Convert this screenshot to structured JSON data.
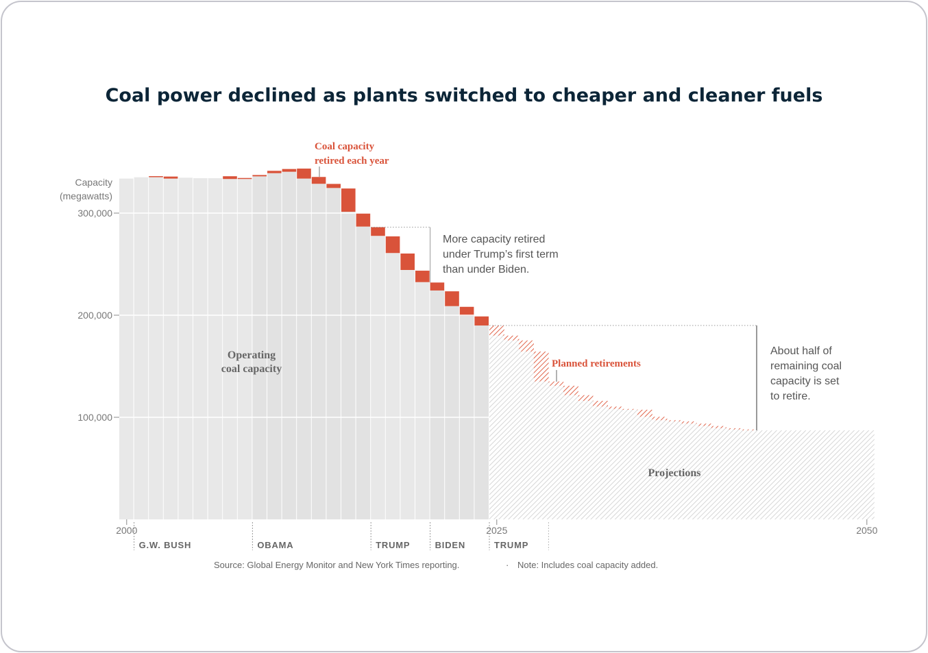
{
  "chart_data": {
    "type": "bar",
    "title": "Coal power declined as plants switched to cheaper and cleaner fuels",
    "ylabel": [
      "Capacity",
      "(megawatts)"
    ],
    "yticks": [
      {
        "value": 100000,
        "label": "100,000"
      },
      {
        "value": 200000,
        "label": "200,000"
      },
      {
        "value": 300000,
        "label": "300,000"
      }
    ],
    "xticks": [
      {
        "value": 2000,
        "label": "2000"
      },
      {
        "value": 2025,
        "label": "2025"
      },
      {
        "value": 2050,
        "label": "2050"
      }
    ],
    "xlim": [
      2000,
      2050
    ],
    "ylim": [
      0,
      350000
    ],
    "grid": true,
    "colors": {
      "operating": "#e8e8e8",
      "operating_alt": "#e2e2e2",
      "retired": "#d9533a",
      "projection_hatch": "#d6d6d6"
    },
    "historical": {
      "years": [
        2000,
        2001,
        2002,
        2003,
        2004,
        2005,
        2006,
        2007,
        2008,
        2009,
        2010,
        2011,
        2012,
        2013,
        2014,
        2015,
        2016,
        2017,
        2018,
        2019,
        2020,
        2021,
        2022,
        2023,
        2024
      ],
      "capacity": [
        333800,
        335100,
        335200,
        333800,
        334700,
        334200,
        334200,
        333400,
        333400,
        336000,
        339100,
        340500,
        333800,
        328700,
        324600,
        301300,
        286800,
        277700,
        260900,
        244300,
        232400,
        224200,
        208900,
        199500,
        189900
      ],
      "retired": [
        0,
        0,
        1000,
        2000,
        0,
        0,
        0,
        2700,
        1000,
        1300,
        2300,
        2700,
        9800,
        6700,
        4000,
        22800,
        13400,
        8500,
        16300,
        16100,
        11200,
        7800,
        14500,
        8700,
        8900
      ]
    },
    "projection": {
      "years": [
        2025,
        2026,
        2027,
        2028,
        2029,
        2030,
        2031,
        2032,
        2033,
        2034,
        2035,
        2036,
        2037,
        2038,
        2039,
        2040,
        2041,
        2042,
        2043,
        2044,
        2045,
        2046,
        2047,
        2048,
        2049,
        2050
      ],
      "capacity": [
        180000,
        175300,
        164400,
        135100,
        130900,
        121700,
        116100,
        110500,
        108200,
        107400,
        100500,
        97100,
        96000,
        93800,
        91500,
        89300,
        88100,
        87200,
        87200,
        87200,
        87200,
        87200,
        87200,
        87200,
        87200,
        87200
      ],
      "planned_retirements": [
        9900,
        4700,
        10900,
        29300,
        4200,
        9200,
        5600,
        5600,
        2300,
        800,
        6900,
        3400,
        1100,
        2200,
        2300,
        2200,
        1200,
        900,
        0,
        0,
        0,
        0,
        0,
        0,
        0,
        0
      ]
    },
    "eras": [
      {
        "label": "G.W. BUSH",
        "start": 2001
      },
      {
        "label": "OBAMA",
        "start": 2009
      },
      {
        "label": "TRUMP",
        "start": 2017
      },
      {
        "label": "BIDEN",
        "start": 2021
      },
      {
        "label": "TRUMP",
        "start": 2025,
        "end": 2029
      }
    ],
    "annotations": {
      "retired_label": [
        "Coal capacity",
        "retired each year"
      ],
      "operating_label": [
        "Operating",
        "coal capacity"
      ],
      "trump_note": [
        "More capacity retired",
        "under Trump’s first term",
        "than under Biden."
      ],
      "planned_label": "Planned retirements",
      "half_note": [
        "About half of",
        "remaining coal",
        "capacity is set",
        "to retire."
      ],
      "projections_label": "Projections"
    },
    "source": "Source: Global Energy Monitor and New York Times reporting.",
    "note": "Note: Includes coal capacity added."
  }
}
